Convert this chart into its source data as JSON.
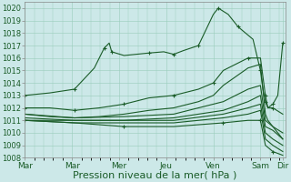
{
  "background_color": "#cce8e8",
  "plot_bg_color": "#cce8e8",
  "grid_color": "#99ccbb",
  "line_color": "#1a5c28",
  "ylim": [
    1008,
    1020.5
  ],
  "yticks": [
    1008,
    1009,
    1010,
    1011,
    1012,
    1013,
    1014,
    1015,
    1016,
    1017,
    1018,
    1019,
    1020
  ],
  "xtick_positions": [
    0,
    0.95,
    1.9,
    2.85,
    3.8,
    4.75,
    5.2
  ],
  "xtick_labels": [
    "Mar",
    "Mar",
    "Mer",
    "Jeu",
    "Ven",
    "Sam",
    "Dir"
  ],
  "xlabel": "Pression niveau de la mer( hPa )",
  "xlabel_fontsize": 8,
  "ytick_fontsize": 6,
  "xtick_fontsize": 6.5,
  "series": [
    {
      "pts": [
        [
          0,
          1013.0
        ],
        [
          0.5,
          1013.2
        ],
        [
          1.0,
          1013.5
        ],
        [
          1.4,
          1015.2
        ],
        [
          1.6,
          1016.8
        ],
        [
          1.7,
          1017.2
        ],
        [
          1.75,
          1016.5
        ],
        [
          2.0,
          1016.2
        ],
        [
          2.5,
          1016.4
        ],
        [
          2.8,
          1016.5
        ],
        [
          3.0,
          1016.3
        ],
        [
          3.2,
          1016.6
        ],
        [
          3.5,
          1017.0
        ],
        [
          3.8,
          1019.5
        ],
        [
          3.9,
          1020.0
        ],
        [
          4.1,
          1019.5
        ],
        [
          4.3,
          1018.5
        ],
        [
          4.6,
          1017.5
        ],
        [
          4.75,
          1015.0
        ],
        [
          4.8,
          1013.5
        ],
        [
          4.85,
          1012.5
        ],
        [
          4.9,
          1012.0
        ],
        [
          5.0,
          1012.3
        ],
        [
          5.1,
          1013.0
        ],
        [
          5.2,
          1017.2
        ]
      ],
      "marker": true
    },
    {
      "pts": [
        [
          0,
          1012.0
        ],
        [
          0.5,
          1012.0
        ],
        [
          1.0,
          1011.8
        ],
        [
          1.5,
          1012.0
        ],
        [
          2.0,
          1012.3
        ],
        [
          2.5,
          1012.8
        ],
        [
          3.0,
          1013.0
        ],
        [
          3.5,
          1013.5
        ],
        [
          3.8,
          1014.0
        ],
        [
          4.0,
          1015.0
        ],
        [
          4.5,
          1016.0
        ],
        [
          4.75,
          1016.0
        ],
        [
          4.85,
          1013.0
        ],
        [
          4.9,
          1012.0
        ],
        [
          5.0,
          1012.0
        ],
        [
          5.2,
          1011.5
        ]
      ],
      "marker": true
    },
    {
      "pts": [
        [
          0,
          1011.5
        ],
        [
          0.5,
          1011.3
        ],
        [
          1.0,
          1011.2
        ],
        [
          1.5,
          1011.3
        ],
        [
          2.0,
          1011.5
        ],
        [
          2.5,
          1011.8
        ],
        [
          3.0,
          1012.0
        ],
        [
          3.5,
          1012.5
        ],
        [
          3.8,
          1013.0
        ],
        [
          4.0,
          1013.8
        ],
        [
          4.5,
          1015.2
        ],
        [
          4.75,
          1015.5
        ],
        [
          4.85,
          1011.5
        ],
        [
          4.9,
          1011.0
        ],
        [
          5.0,
          1010.5
        ],
        [
          5.2,
          1009.5
        ]
      ],
      "marker": false
    },
    {
      "pts": [
        [
          0,
          1011.5
        ],
        [
          1.0,
          1011.2
        ],
        [
          2.0,
          1011.3
        ],
        [
          3.0,
          1011.5
        ],
        [
          4.0,
          1012.5
        ],
        [
          4.5,
          1013.5
        ],
        [
          4.75,
          1013.8
        ],
        [
          4.85,
          1011.0
        ],
        [
          5.0,
          1010.5
        ],
        [
          5.2,
          1010.0
        ]
      ],
      "marker": false
    },
    {
      "pts": [
        [
          0,
          1011.2
        ],
        [
          1.0,
          1011.0
        ],
        [
          2.0,
          1011.0
        ],
        [
          3.0,
          1011.2
        ],
        [
          4.0,
          1011.8
        ],
        [
          4.5,
          1012.5
        ],
        [
          4.75,
          1013.0
        ],
        [
          4.85,
          1010.5
        ],
        [
          5.0,
          1010.2
        ],
        [
          5.2,
          1009.5
        ]
      ],
      "marker": false
    },
    {
      "pts": [
        [
          0,
          1011.0
        ],
        [
          1.0,
          1011.0
        ],
        [
          2.0,
          1011.0
        ],
        [
          3.0,
          1011.0
        ],
        [
          4.0,
          1011.5
        ],
        [
          4.5,
          1012.0
        ],
        [
          4.75,
          1012.3
        ],
        [
          4.85,
          1010.0
        ],
        [
          5.0,
          1009.5
        ],
        [
          5.2,
          1009.0
        ]
      ],
      "marker": false
    },
    {
      "pts": [
        [
          0,
          1011.0
        ],
        [
          1.0,
          1010.8
        ],
        [
          2.0,
          1010.8
        ],
        [
          3.0,
          1010.8
        ],
        [
          4.0,
          1011.2
        ],
        [
          4.5,
          1011.5
        ],
        [
          4.75,
          1011.8
        ],
        [
          4.85,
          1009.5
        ],
        [
          5.0,
          1009.0
        ],
        [
          5.2,
          1008.5
        ]
      ],
      "marker": false
    },
    {
      "pts": [
        [
          0,
          1011.0
        ],
        [
          1.0,
          1010.8
        ],
        [
          2.0,
          1010.5
        ],
        [
          3.0,
          1010.5
        ],
        [
          4.0,
          1010.8
        ],
        [
          4.5,
          1011.0
        ],
        [
          4.75,
          1011.0
        ],
        [
          4.85,
          1009.0
        ],
        [
          5.0,
          1008.5
        ],
        [
          5.2,
          1008.2
        ]
      ],
      "marker": true
    }
  ],
  "xlim": [
    0,
    5.25
  ]
}
